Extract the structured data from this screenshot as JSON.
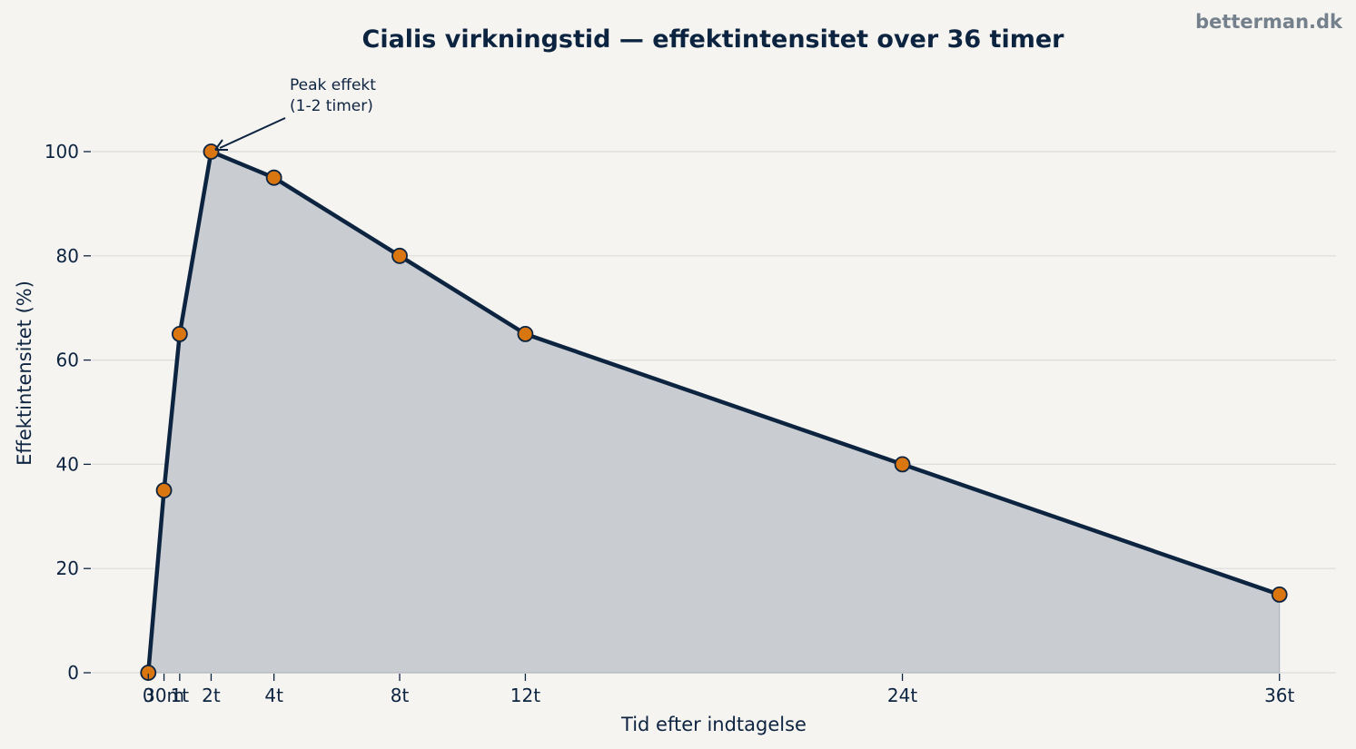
{
  "watermark": "betterman.dk",
  "chart_data": {
    "type": "area",
    "title": "Cialis virkningstid — effektintensitet over 36 timer",
    "xlabel": "Tid efter indtagelse",
    "ylabel": "Effektintensitet (%)",
    "x": [
      0,
      0.5,
      1,
      2,
      4,
      8,
      12,
      24,
      36
    ],
    "y": [
      0,
      35,
      65,
      100,
      95,
      80,
      65,
      40,
      15
    ],
    "xticks": [
      {
        "value": 0,
        "label": "0"
      },
      {
        "value": 0.5,
        "label": "30m"
      },
      {
        "value": 1,
        "label": "1t"
      },
      {
        "value": 2,
        "label": "2t"
      },
      {
        "value": 4,
        "label": "4t"
      },
      {
        "value": 8,
        "label": "8t"
      },
      {
        "value": 12,
        "label": "12t"
      },
      {
        "value": 24,
        "label": "24t"
      },
      {
        "value": 36,
        "label": "36t"
      }
    ],
    "yticks": [
      0,
      20,
      40,
      60,
      80,
      100
    ],
    "xlim": [
      -1.8,
      37.8
    ],
    "ylim": [
      0,
      100
    ],
    "grid": "horizontal",
    "annotation": {
      "lines": [
        "Peak effekt",
        "(1-2 timer)"
      ],
      "x": 2,
      "y": 100
    },
    "colors": {
      "line": "#0d2440",
      "marker": "#d9760f",
      "fill": "#c9ccd0",
      "grid": "#dcdcda",
      "background": "#f5f4f1"
    }
  }
}
